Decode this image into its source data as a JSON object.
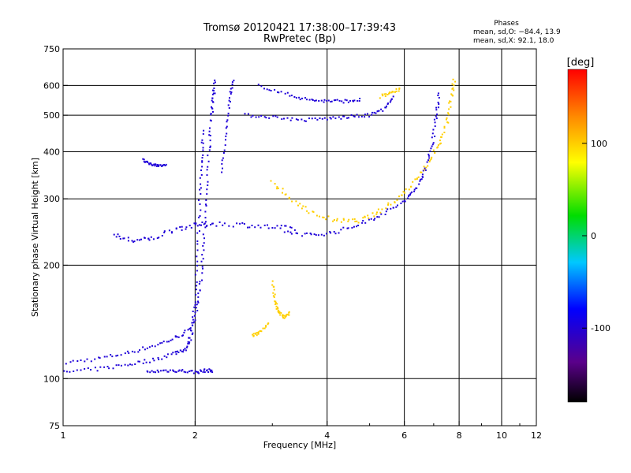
{
  "chart_data": {
    "type": "scatter",
    "title": "Tromsø 20120421 17:38:00–17:39:43",
    "subtitle": "RwPretec (Bp)",
    "xlabel": "Frequency [MHz]",
    "ylabel": "Stationary phase Virtual Height [km]",
    "x_scale": "log",
    "y_scale": "log",
    "xlim": [
      1,
      12
    ],
    "ylim": [
      75,
      750
    ],
    "x_ticks": [
      1,
      2,
      4,
      6,
      8,
      10,
      12
    ],
    "y_ticks": [
      75,
      100,
      200,
      300,
      400,
      500,
      600,
      750
    ],
    "grid": true,
    "phase_stats": {
      "title": "Phases",
      "line_o": "mean, sd,O: −84.4, 13.9",
      "line_x": "mean, sd,X:  92.1, 18.0"
    },
    "colorbar": {
      "label": "[deg]",
      "ticks": [
        100,
        0,
        -100
      ],
      "range": [
        -180,
        180
      ],
      "placement": "right"
    },
    "traces": [
      {
        "phase": -100,
        "spread": 0.012,
        "points": [
          [
            1.0,
            110
          ],
          [
            1.2,
            113
          ],
          [
            1.4,
            117
          ],
          [
            1.6,
            122
          ],
          [
            1.8,
            128
          ],
          [
            1.95,
            135
          ],
          [
            2.02,
            150
          ],
          [
            2.06,
            180
          ],
          [
            2.09,
            230
          ],
          [
            2.12,
            300
          ],
          [
            2.15,
            400
          ],
          [
            2.18,
            500
          ],
          [
            2.2,
            560
          ],
          [
            2.22,
            620
          ]
        ]
      },
      {
        "phase": -100,
        "spread": 0.012,
        "points": [
          [
            1.0,
            104
          ],
          [
            1.2,
            106
          ],
          [
            1.4,
            109
          ],
          [
            1.6,
            112
          ],
          [
            1.8,
            117
          ],
          [
            1.9,
            120
          ],
          [
            1.96,
            130
          ],
          [
            2.0,
            160
          ],
          [
            2.03,
            220
          ],
          [
            2.05,
            300
          ],
          [
            2.07,
            380
          ],
          [
            2.09,
            460
          ]
        ]
      },
      {
        "phase": -100,
        "spread": 0.01,
        "points": [
          [
            1.55,
            104
          ],
          [
            1.7,
            105
          ],
          [
            1.85,
            105
          ],
          [
            2.0,
            104
          ],
          [
            2.1,
            105
          ],
          [
            2.2,
            105
          ]
        ]
      },
      {
        "phase": -100,
        "spread": 0.015,
        "points": [
          [
            1.3,
            240
          ],
          [
            1.45,
            232
          ],
          [
            1.6,
            235
          ],
          [
            1.8,
            250
          ],
          [
            2.0,
            255
          ],
          [
            2.2,
            258
          ],
          [
            2.6,
            256
          ],
          [
            3.0,
            252
          ],
          [
            3.4,
            250
          ]
        ]
      },
      {
        "phase": -100,
        "spread": 0.012,
        "points": [
          [
            3.2,
            245
          ],
          [
            3.7,
            240
          ],
          [
            4.2,
            245
          ],
          [
            4.8,
            258
          ],
          [
            5.4,
            275
          ],
          [
            6.0,
            295
          ],
          [
            6.4,
            320
          ],
          [
            6.7,
            360
          ],
          [
            6.95,
            420
          ],
          [
            7.1,
            500
          ],
          [
            7.2,
            580
          ]
        ]
      },
      {
        "phase": -100,
        "spread": 0.01,
        "points": [
          [
            2.6,
            500
          ],
          [
            3.0,
            495
          ],
          [
            3.5,
            485
          ],
          [
            4.0,
            490
          ],
          [
            4.5,
            495
          ],
          [
            5.0,
            500
          ],
          [
            5.4,
            520
          ],
          [
            5.7,
            560
          ]
        ]
      },
      {
        "phase": -100,
        "spread": 0.01,
        "points": [
          [
            2.8,
            600
          ],
          [
            3.2,
            570
          ],
          [
            3.6,
            550
          ],
          [
            4.0,
            545
          ],
          [
            4.4,
            545
          ],
          [
            4.8,
            550
          ]
        ]
      },
      {
        "phase": -100,
        "spread": 0.008,
        "points": [
          [
            1.52,
            380
          ],
          [
            1.58,
            370
          ],
          [
            1.65,
            368
          ],
          [
            1.72,
            370
          ]
        ]
      },
      {
        "phase": -100,
        "spread": 0.01,
        "points": [
          [
            2.3,
            350
          ],
          [
            2.35,
            450
          ],
          [
            2.4,
            550
          ],
          [
            2.45,
            630
          ]
        ]
      },
      {
        "phase": 100,
        "spread": 0.015,
        "points": [
          [
            3.0,
            330
          ],
          [
            3.3,
            300
          ],
          [
            3.7,
            275
          ],
          [
            4.2,
            262
          ],
          [
            4.7,
            262
          ],
          [
            5.2,
            275
          ],
          [
            5.8,
            300
          ],
          [
            6.3,
            330
          ],
          [
            6.8,
            370
          ],
          [
            7.2,
            420
          ],
          [
            7.5,
            480
          ],
          [
            7.7,
            560
          ],
          [
            7.8,
            620
          ]
        ]
      },
      {
        "phase": 100,
        "spread": 0.01,
        "points": [
          [
            3.0,
            180
          ],
          [
            3.05,
            160
          ],
          [
            3.1,
            150
          ],
          [
            3.2,
            145
          ],
          [
            3.3,
            150
          ]
        ]
      },
      {
        "phase": 100,
        "spread": 0.01,
        "points": [
          [
            2.7,
            130
          ],
          [
            2.8,
            132
          ],
          [
            2.95,
            140
          ]
        ]
      },
      {
        "phase": 100,
        "spread": 0.01,
        "points": [
          [
            5.3,
            560
          ],
          [
            5.6,
            575
          ],
          [
            5.9,
            590
          ]
        ]
      }
    ]
  }
}
